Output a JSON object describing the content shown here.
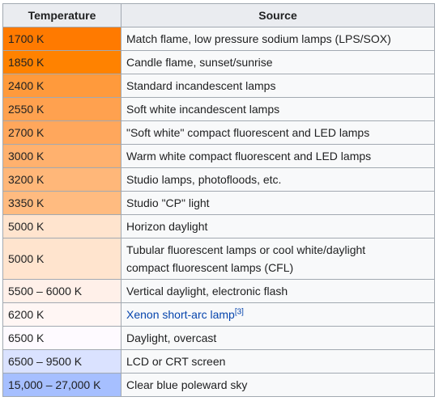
{
  "headers": {
    "temperature": "Temperature",
    "source": "Source"
  },
  "rows": [
    {
      "temp": "1700 K",
      "source": "Match flame, low pressure sodium lamps (LPS/SOX)",
      "color": "#ff7a00"
    },
    {
      "temp": "1850 K",
      "source": "Candle flame, sunset/sunrise",
      "color": "#ff8200"
    },
    {
      "temp": "2400 K",
      "source": "Standard incandescent lamps",
      "color": "#ff9a3c"
    },
    {
      "temp": "2550 K",
      "source": "Soft white incandescent lamps",
      "color": "#ffa14f"
    },
    {
      "temp": "2700 K",
      "source": "\"Soft white\" compact fluorescent and LED lamps",
      "color": "#ffa75c"
    },
    {
      "temp": "3000 K",
      "source": "Warm white compact fluorescent and LED lamps",
      "color": "#ffb16e"
    },
    {
      "temp": "3200 K",
      "source": "Studio lamps, photofloods, etc.",
      "color": "#ffb779"
    },
    {
      "temp": "3350 K",
      "source": "Studio \"CP\" light",
      "color": "#ffbb80"
    },
    {
      "temp": "5000 K",
      "source": "Horizon daylight",
      "color": "#ffe4ce"
    },
    {
      "temp": "5000 K",
      "source_line1": "Tubular fluorescent lamps or cool white/daylight",
      "source_line2": "compact fluorescent lamps (CFL)",
      "color": "#ffe4ce",
      "tall": true
    },
    {
      "temp": "5500 – 6000 K",
      "source": "Vertical daylight, electronic flash",
      "color": "#fff0e9"
    },
    {
      "temp": "6200 K",
      "source_link": "Xenon short-arc lamp",
      "source_sup": "[3]",
      "color": "#fff6f4"
    },
    {
      "temp": "6500 K",
      "source": "Daylight, overcast",
      "color": "#fefaff"
    },
    {
      "temp": "6500 – 9500 K",
      "source": "LCD or CRT screen",
      "color": "#dae2ff"
    },
    {
      "temp": "15,000 – 27,000 K",
      "source": "Clear blue poleward sky",
      "color": "#a6bfff"
    }
  ]
}
